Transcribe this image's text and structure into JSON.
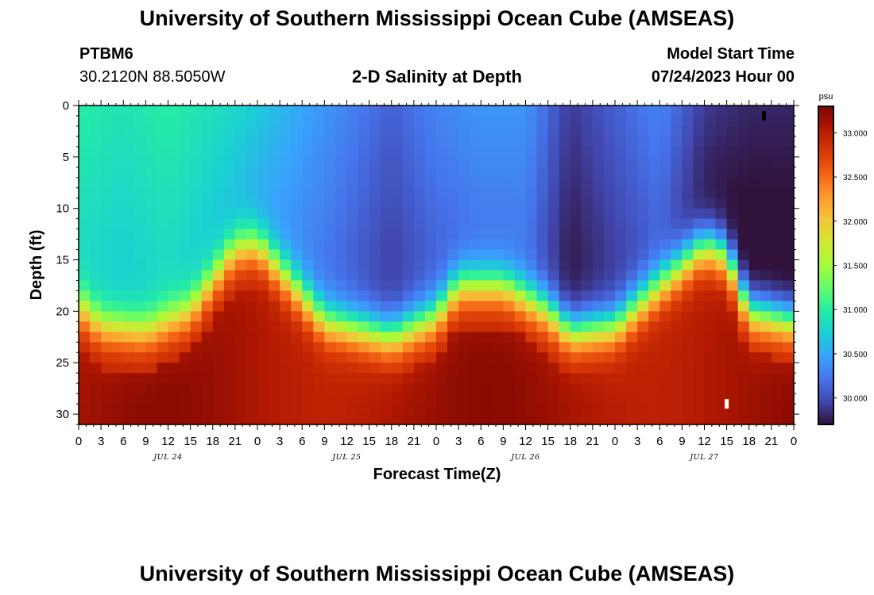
{
  "header": {
    "title_top": "University of Southern Mississippi Ocean Cube (AMSEAS)",
    "station_id": "PTBM6",
    "coordinates": "30.2120N  88.5050W",
    "plot_title": "2-D Salinity at Depth",
    "model_start_label": "Model Start Time",
    "model_start_value": "07/24/2023 Hour 00",
    "title_bottom": "University of Southern Mississippi Ocean Cube (AMSEAS)"
  },
  "chart_data": {
    "type": "heatmap",
    "title": "2-D Salinity at Depth",
    "xlabel": "Forecast Time(Z)",
    "ylabel": "Depth (ft)",
    "x_unit_hours": 3,
    "xlim_hours": [
      0,
      96
    ],
    "ylim": [
      0,
      31
    ],
    "y_inverted": true,
    "x_tick_labels": [
      "0",
      "3",
      "6",
      "9",
      "12",
      "15",
      "18",
      "21",
      "0",
      "3",
      "6",
      "9",
      "12",
      "15",
      "18",
      "21",
      "0",
      "3",
      "6",
      "9",
      "12",
      "15",
      "18",
      "21",
      "0",
      "3",
      "6",
      "9",
      "12",
      "15",
      "18",
      "21",
      "0"
    ],
    "y_ticks": [
      0,
      5,
      10,
      15,
      20,
      25,
      30
    ],
    "y_tick_labels": [
      "0",
      "5",
      "10",
      "15",
      "20",
      "25",
      "30"
    ],
    "date_labels": [
      {
        "label": "JUL 24",
        "hour": 12
      },
      {
        "label": "JUL 25",
        "hour": 36
      },
      {
        "label": "JUL 26",
        "hour": 60
      },
      {
        "label": "JUL 27",
        "hour": 84
      }
    ],
    "colorbar": {
      "unit": "psu",
      "min": 29.7,
      "max": 33.3,
      "tick_values": [
        30.0,
        30.5,
        31.0,
        31.5,
        32.0,
        32.5,
        33.0
      ],
      "tick_labels": [
        "30.000",
        "30.500",
        "31.000",
        "31.500",
        "32.000",
        "32.500",
        "33.000"
      ],
      "colors": [
        "#30123b",
        "#4145ab",
        "#4675ed",
        "#39a2fc",
        "#1bcfd4",
        "#24eca6",
        "#61fc6c",
        "#a4fc3b",
        "#d1e834",
        "#f3c63a",
        "#fe9b2d",
        "#f36315",
        "#d93806",
        "#b11901",
        "#7a0403"
      ]
    },
    "halocline": [
      {
        "hour": 0,
        "depth": 19.5
      },
      {
        "hour": 3,
        "depth": 21.5
      },
      {
        "hour": 9,
        "depth": 22.0
      },
      {
        "hour": 15,
        "depth": 20.0
      },
      {
        "hour": 21,
        "depth": 14.0
      },
      {
        "hour": 24,
        "depth": 13.5
      },
      {
        "hour": 27,
        "depth": 16.0
      },
      {
        "hour": 33,
        "depth": 21.0
      },
      {
        "hour": 42,
        "depth": 22.5
      },
      {
        "hour": 48,
        "depth": 20.5
      },
      {
        "hour": 51,
        "depth": 17.5
      },
      {
        "hour": 57,
        "depth": 17.5
      },
      {
        "hour": 63,
        "depth": 20.0
      },
      {
        "hour": 66,
        "depth": 22.0
      },
      {
        "hour": 72,
        "depth": 21.5
      },
      {
        "hour": 78,
        "depth": 17.5
      },
      {
        "hour": 84,
        "depth": 13.5
      },
      {
        "hour": 87,
        "depth": 14.5
      },
      {
        "hour": 90,
        "depth": 20.0
      },
      {
        "hour": 96,
        "depth": 21.0
      }
    ],
    "surface_salinity": [
      {
        "hour": 0,
        "value": 31.0
      },
      {
        "hour": 6,
        "value": 30.9
      },
      {
        "hour": 12,
        "value": 31.0
      },
      {
        "hour": 21,
        "value": 30.8
      },
      {
        "hour": 27,
        "value": 30.6
      },
      {
        "hour": 36,
        "value": 30.3
      },
      {
        "hour": 42,
        "value": 30.1
      },
      {
        "hour": 48,
        "value": 30.3
      },
      {
        "hour": 54,
        "value": 30.4
      },
      {
        "hour": 60,
        "value": 30.4
      },
      {
        "hour": 66,
        "value": 29.9
      },
      {
        "hour": 72,
        "value": 30.1
      },
      {
        "hour": 78,
        "value": 30.3
      },
      {
        "hour": 84,
        "value": 29.9
      },
      {
        "hour": 90,
        "value": 29.8
      },
      {
        "hour": 96,
        "value": 29.8
      }
    ],
    "deep_salinity": 33.0,
    "markers": [
      {
        "hour": 92,
        "depth": 1.0,
        "color": "#000000"
      },
      {
        "hour": 87,
        "depth": 29.0,
        "color": "#ffffff"
      }
    ]
  }
}
